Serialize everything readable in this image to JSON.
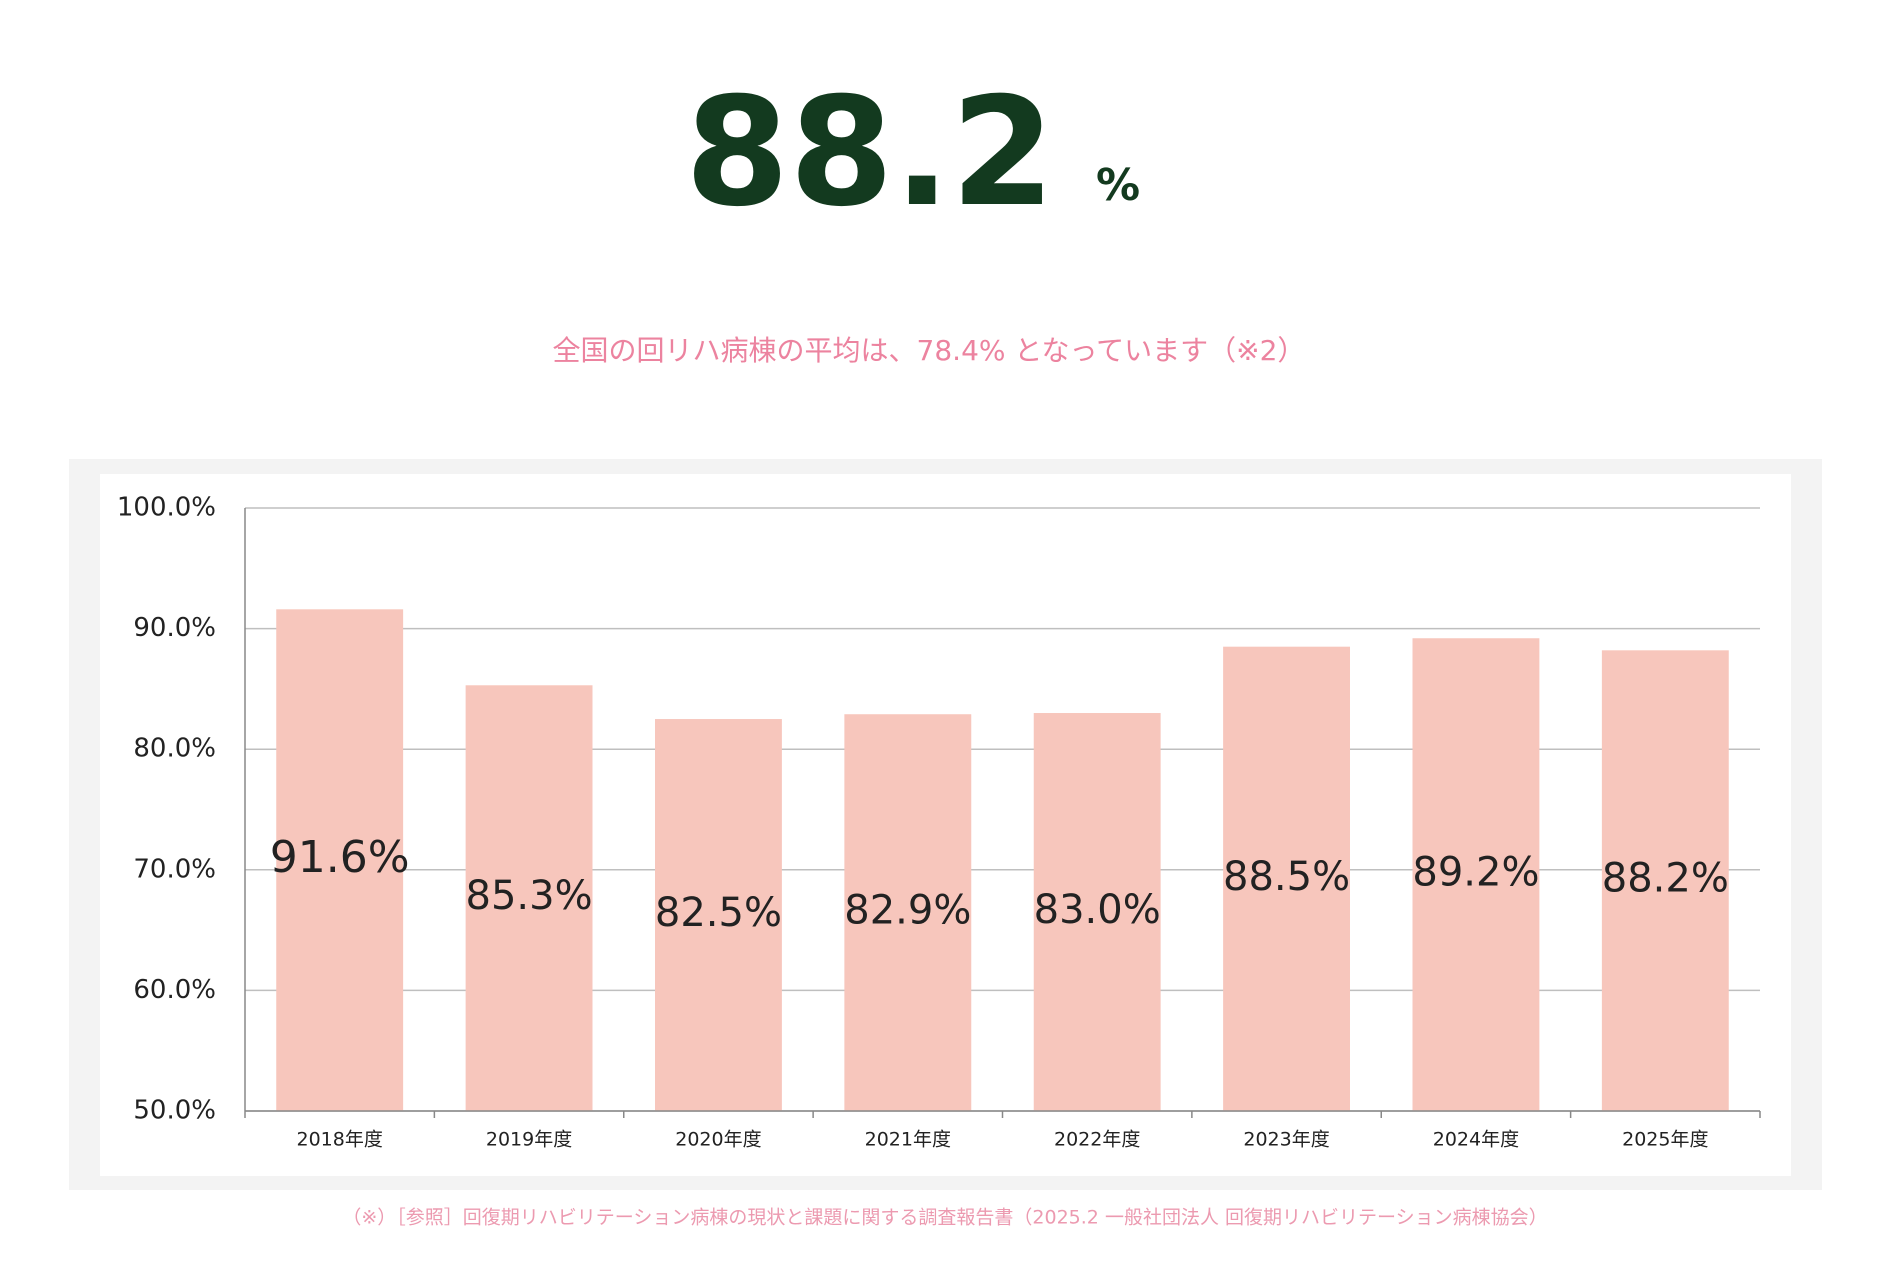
{
  "header": {
    "value": "88.2",
    "unit": "%",
    "subtitle": "全国の回リハ病棟の平均は、78.4% となっています（※2）"
  },
  "chart_data": {
    "type": "bar",
    "categories": [
      "2018年度",
      "2019年度",
      "2020年度",
      "2021年度",
      "2022年度",
      "2023年度",
      "2024年度",
      "2025年度"
    ],
    "values": [
      91.6,
      85.3,
      82.5,
      82.9,
      83.0,
      88.5,
      89.2,
      88.2
    ],
    "value_labels": [
      "91.6%",
      "85.3%",
      "82.5%",
      "82.9%",
      "83.0%",
      "88.5%",
      "89.2%",
      "88.2%"
    ],
    "color": "#f7c6bc",
    "ylim": [
      50,
      100
    ],
    "yticks": [
      {
        "value": 50,
        "label": "50.0%"
      },
      {
        "value": 60,
        "label": "60.0%"
      },
      {
        "value": 70,
        "label": "70.0%"
      },
      {
        "value": 80,
        "label": "80.0%"
      },
      {
        "value": 90,
        "label": "90.0%"
      },
      {
        "value": 100,
        "label": "100.0%"
      }
    ],
    "grid": true
  },
  "footnote": "（※）［参照］回復期リハビリテーション病棟の現状と課題に関する調査報告書（2025.2 一般社団法人 回復期リハビリテーション病棟協会）"
}
